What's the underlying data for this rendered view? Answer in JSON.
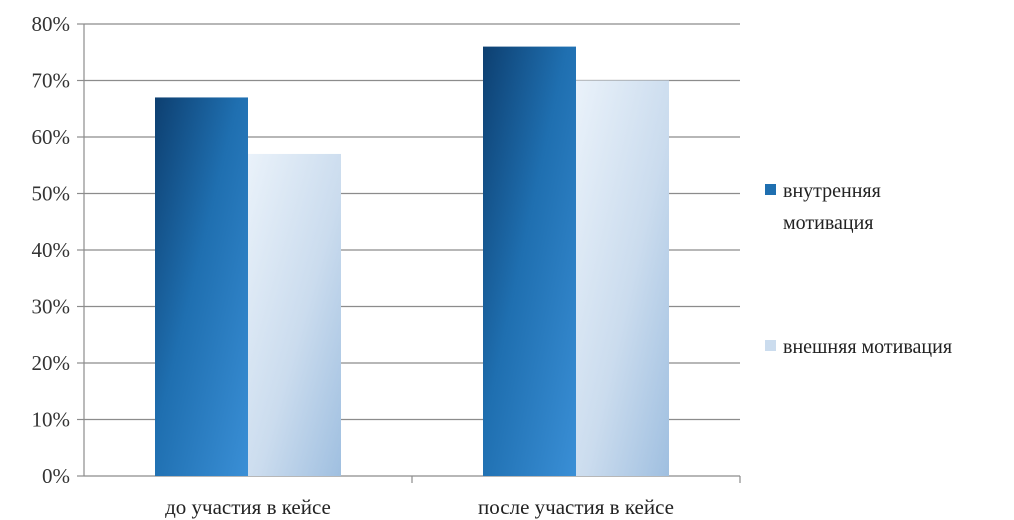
{
  "chart_data": {
    "type": "bar",
    "categories": [
      "до участия в кейсе",
      "после участия в кейсе"
    ],
    "series": [
      {
        "name": "внутренняя мотивация",
        "values": [
          67,
          76
        ],
        "color": "#1f6fb0"
      },
      {
        "name": "внешняя мотивация",
        "values": [
          57,
          70
        ],
        "color": "#cbdcee"
      }
    ],
    "ylim": [
      0,
      80
    ],
    "yticks": [
      "0%",
      "10%",
      "20%",
      "30%",
      "40%",
      "50%",
      "60%",
      "70%",
      "80%"
    ],
    "grid": true,
    "legend_position": "right",
    "legend_lines": [
      [
        "внутренняя",
        "мотивация"
      ],
      [
        "внешняя мотивация"
      ]
    ]
  }
}
